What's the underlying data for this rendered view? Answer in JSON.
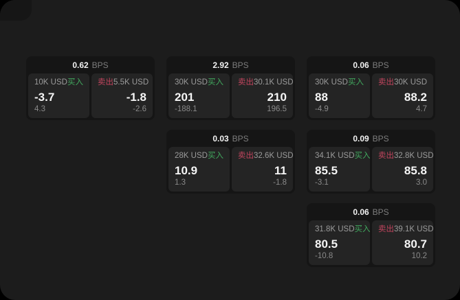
{
  "colors": {
    "window_bg": "#1c1c1c",
    "card_bg": "#151515",
    "panel_bg": "#242424",
    "buy_accent": "#41a85e",
    "sell_accent": "#c2455e",
    "value_text": "#f5f5f5",
    "muted_text": "#8a8a8a"
  },
  "labels": {
    "bps_unit": "BPS",
    "buy": "买入",
    "sell": "卖出"
  },
  "cards": [
    {
      "bps": "0.62",
      "bps_unit": "BPS",
      "buy": {
        "amount": "10K USD",
        "side": "买入",
        "price": "-3.7",
        "change": "4.3"
      },
      "sell": {
        "side": "卖出",
        "amount": "5.5K USD",
        "price": "-1.8",
        "change": "-2.6"
      }
    },
    {
      "bps": "2.92",
      "bps_unit": "BPS",
      "buy": {
        "amount": "30K USD",
        "side": "买入",
        "price": "201",
        "change": "-188.1"
      },
      "sell": {
        "side": "卖出",
        "amount": "30.1K USD",
        "price": "210",
        "change": "196.5"
      }
    },
    {
      "bps": "0.06",
      "bps_unit": "BPS",
      "buy": {
        "amount": "30K USD",
        "side": "买入",
        "price": "88",
        "change": "-4.9"
      },
      "sell": {
        "side": "卖出",
        "amount": "30K USD",
        "price": "88.2",
        "change": "4.7"
      }
    },
    {
      "bps": "0.03",
      "bps_unit": "BPS",
      "buy": {
        "amount": "28K USD",
        "side": "买入",
        "price": "10.9",
        "change": "1.3"
      },
      "sell": {
        "side": "卖出",
        "amount": "32.6K USD",
        "price": "11",
        "change": "-1.8"
      }
    },
    {
      "bps": "0.09",
      "bps_unit": "BPS",
      "buy": {
        "amount": "34.1K USD",
        "side": "买入",
        "price": "85.5",
        "change": "-3.1"
      },
      "sell": {
        "side": "卖出",
        "amount": "32.8K USD",
        "price": "85.8",
        "change": "3.0"
      }
    },
    {
      "bps": "0.06",
      "bps_unit": "BPS",
      "buy": {
        "amount": "31.8K USD",
        "side": "买入",
        "price": "80.5",
        "change": "-10.8"
      },
      "sell": {
        "side": "卖出",
        "amount": "39.1K USD",
        "price": "80.7",
        "change": "10.2"
      }
    }
  ]
}
